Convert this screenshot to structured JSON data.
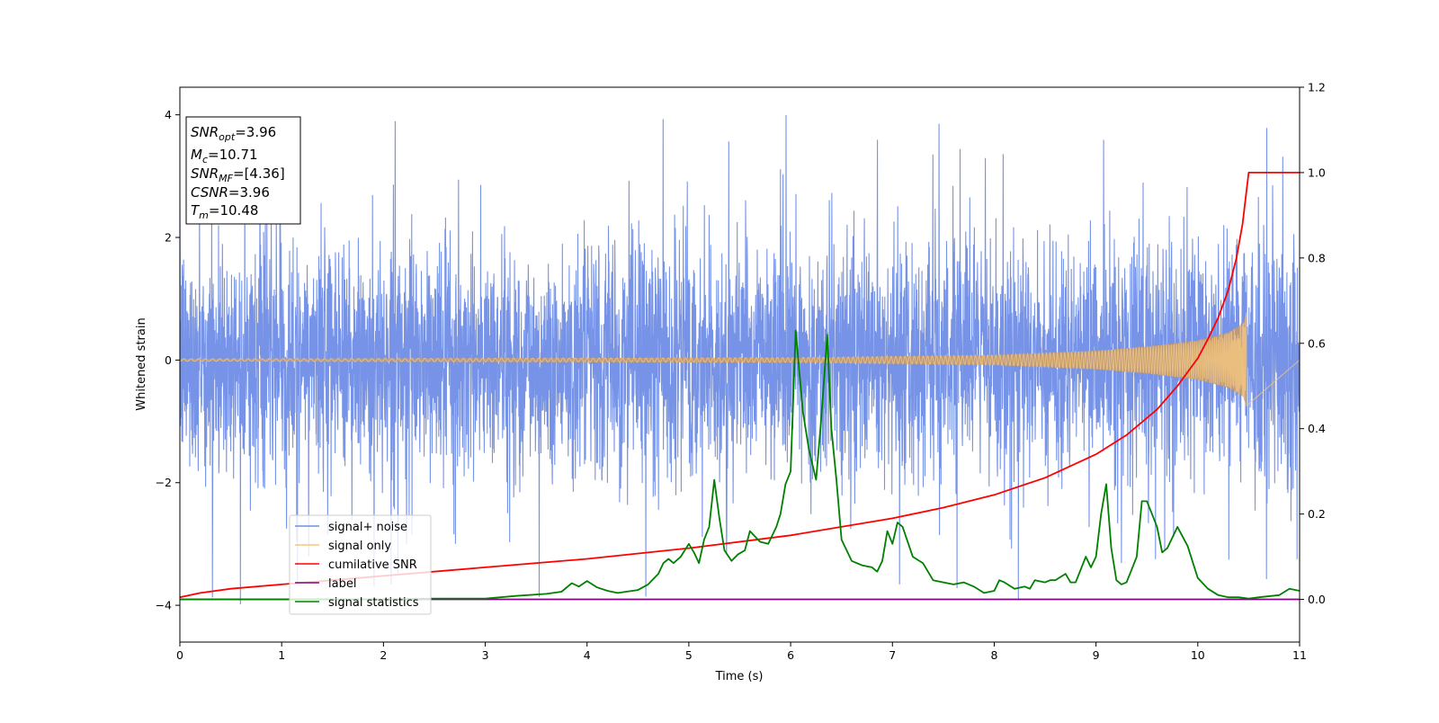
{
  "chart_data": {
    "type": "line",
    "xlabel": "Time (s)",
    "ylabel": "Whitened strain",
    "xlim": [
      0,
      11
    ],
    "ylim_left": [
      -4.6,
      4.45
    ],
    "ylim_right": [
      -0.1,
      1.2
    ],
    "x_ticks": [
      0,
      1,
      2,
      3,
      4,
      5,
      6,
      7,
      8,
      9,
      10,
      11
    ],
    "y_ticks_left": [
      -4,
      -2,
      0,
      2,
      4
    ],
    "y_ticks_right": [
      0.0,
      0.2,
      0.4,
      0.6,
      0.8,
      1.0,
      1.2
    ],
    "y_tick_labels_left": [
      "−4",
      "−2",
      "0",
      "2",
      "4"
    ],
    "y_tick_labels_right": [
      "0.0",
      "0.2",
      "0.4",
      "0.6",
      "0.8",
      "1.0",
      "1.2"
    ],
    "grid": false,
    "legend_position": "lower-left",
    "legend": [
      {
        "label": "signal+ noise",
        "color": "#6f8de6"
      },
      {
        "label": "signal only",
        "color": "#f5c77e"
      },
      {
        "label": "cumilative SNR",
        "color": "#ff0000"
      },
      {
        "label": "label",
        "color": "#800080"
      },
      {
        "label": "signal statistics",
        "color": "#008000"
      }
    ],
    "annotation": {
      "position": "top-left",
      "lines": [
        {
          "name": "SNR",
          "sub": "opt",
          "value": "=3.96"
        },
        {
          "name": "M",
          "sub": "c",
          "value": "=10.71"
        },
        {
          "name": "SNR",
          "sub": "MF",
          "value": "=[4.36]"
        },
        {
          "name": "CSNR",
          "sub": "",
          "value": "=3.96"
        },
        {
          "name": "T",
          "sub": "m",
          "value": "=10.48"
        }
      ]
    },
    "series": [
      {
        "name": "signal+ noise",
        "axis": "left",
        "color": "#6f8de6",
        "style": "noise",
        "x_range": [
          0,
          11
        ],
        "y_typical_range": [
          -2.5,
          2.5
        ],
        "y_extremes": [
          -4.1,
          4.05
        ]
      },
      {
        "name": "signal only",
        "axis": "left",
        "color": "#f5c77e",
        "style": "chirp",
        "x_range": [
          0,
          10.48
        ],
        "amplitude_points": [
          [
            0,
            0.02
          ],
          [
            6,
            0.04
          ],
          [
            8,
            0.08
          ],
          [
            9,
            0.15
          ],
          [
            9.5,
            0.22
          ],
          [
            10,
            0.32
          ],
          [
            10.3,
            0.45
          ],
          [
            10.45,
            0.6
          ],
          [
            10.48,
            0.8
          ]
        ]
      },
      {
        "name": "cumilative SNR",
        "axis": "right",
        "color": "#ff0000",
        "x": [
          0,
          0.2,
          0.5,
          1,
          2,
          3,
          4,
          5,
          6,
          7,
          7.5,
          8,
          8.5,
          9,
          9.3,
          9.6,
          9.8,
          10,
          10.1,
          10.2,
          10.3,
          10.38,
          10.44,
          10.48,
          10.5,
          11
        ],
        "y": [
          0.005,
          0.015,
          0.025,
          0.035,
          0.055,
          0.075,
          0.095,
          0.12,
          0.15,
          0.19,
          0.215,
          0.245,
          0.285,
          0.34,
          0.385,
          0.445,
          0.5,
          0.565,
          0.61,
          0.66,
          0.725,
          0.8,
          0.88,
          0.96,
          1.0,
          1.0
        ]
      },
      {
        "name": "label",
        "axis": "right",
        "color": "#800080",
        "x": [
          0,
          11
        ],
        "y": [
          0,
          0
        ]
      },
      {
        "name": "signal statistics",
        "axis": "right",
        "color": "#008000",
        "x": [
          0,
          0.5,
          1,
          1.5,
          2,
          2.5,
          3,
          3.3,
          3.6,
          3.75,
          3.85,
          3.92,
          4.0,
          4.1,
          4.2,
          4.3,
          4.5,
          4.6,
          4.7,
          4.75,
          4.8,
          4.85,
          4.92,
          5.0,
          5.05,
          5.1,
          5.15,
          5.2,
          5.25,
          5.3,
          5.35,
          5.42,
          5.48,
          5.55,
          5.6,
          5.7,
          5.78,
          5.86,
          5.9,
          5.95,
          6.0,
          6.05,
          6.08,
          6.12,
          6.18,
          6.25,
          6.3,
          6.36,
          6.4,
          6.45,
          6.5,
          6.6,
          6.7,
          6.8,
          6.85,
          6.9,
          6.95,
          7.0,
          7.05,
          7.1,
          7.2,
          7.3,
          7.4,
          7.5,
          7.6,
          7.7,
          7.8,
          7.9,
          8.0,
          8.05,
          8.1,
          8.2,
          8.3,
          8.35,
          8.4,
          8.5,
          8.55,
          8.6,
          8.7,
          8.75,
          8.8,
          8.9,
          8.95,
          9.0,
          9.05,
          9.1,
          9.15,
          9.2,
          9.25,
          9.3,
          9.35,
          9.4,
          9.45,
          9.5,
          9.55,
          9.6,
          9.65,
          9.7,
          9.8,
          9.9,
          10.0,
          10.1,
          10.2,
          10.3,
          10.4,
          10.5,
          10.6,
          10.8,
          10.9,
          11.0
        ],
        "y": [
          0.0,
          0.0,
          0.0,
          0.0,
          0.0,
          0.002,
          0.002,
          0.008,
          0.013,
          0.018,
          0.038,
          0.03,
          0.043,
          0.028,
          0.02,
          0.015,
          0.022,
          0.035,
          0.06,
          0.085,
          0.095,
          0.085,
          0.1,
          0.13,
          0.11,
          0.085,
          0.14,
          0.17,
          0.28,
          0.19,
          0.115,
          0.09,
          0.105,
          0.115,
          0.16,
          0.135,
          0.13,
          0.17,
          0.2,
          0.27,
          0.3,
          0.63,
          0.55,
          0.44,
          0.35,
          0.28,
          0.42,
          0.62,
          0.4,
          0.28,
          0.14,
          0.09,
          0.08,
          0.075,
          0.065,
          0.09,
          0.16,
          0.13,
          0.18,
          0.17,
          0.1,
          0.085,
          0.045,
          0.04,
          0.035,
          0.04,
          0.03,
          0.015,
          0.02,
          0.045,
          0.04,
          0.025,
          0.03,
          0.025,
          0.045,
          0.04,
          0.045,
          0.045,
          0.06,
          0.04,
          0.04,
          0.1,
          0.075,
          0.1,
          0.2,
          0.27,
          0.12,
          0.045,
          0.035,
          0.04,
          0.07,
          0.1,
          0.23,
          0.23,
          0.2,
          0.17,
          0.11,
          0.12,
          0.17,
          0.125,
          0.05,
          0.025,
          0.01,
          0.005,
          0.005,
          0.002,
          0.005,
          0.01,
          0.025,
          0.02
        ]
      }
    ]
  }
}
